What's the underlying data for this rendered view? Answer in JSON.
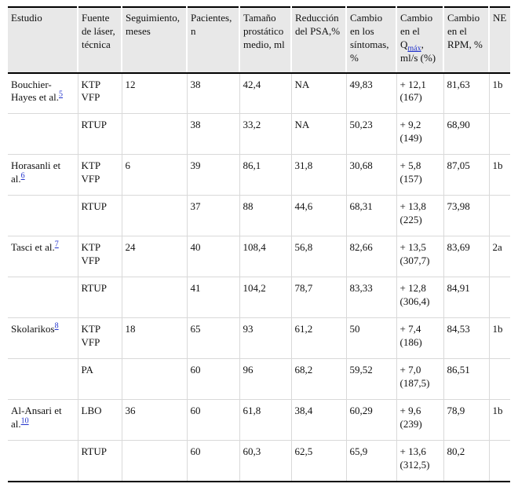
{
  "colors": {
    "page_bg": "#ffffff",
    "text": "#111111",
    "header_bg": "#e8e8e8",
    "link": "#2233cc",
    "border_dark": "#000000",
    "border_light": "#d9d9d9"
  },
  "table": {
    "columns": [
      {
        "key": "study",
        "label": "Estudio"
      },
      {
        "key": "technique",
        "label": "Fuente de láser, técnica"
      },
      {
        "key": "followup",
        "label": "Seguimiento, meses"
      },
      {
        "key": "patients",
        "label": "Pacientes, n"
      },
      {
        "key": "prostate_size",
        "label": "Tamaño prostático medio, ml"
      },
      {
        "key": "psa_reduction",
        "label": "Reducción del PSA,%"
      },
      {
        "key": "symptom_change",
        "label": "Cambio en los síntomas, %"
      },
      {
        "key": "qmax_change",
        "label": "Cambio en el Qmáx, ml/s (%)",
        "label_parts": {
          "prefix": "Cambio en el Q",
          "subscript": "máx",
          "suffix": ", ml/s (%)"
        }
      },
      {
        "key": "rpm_change",
        "label": "Cambio en el RPM, %"
      },
      {
        "key": "ne",
        "label": "NE"
      }
    ],
    "rows": [
      {
        "study": "Bouchier-Hayes et al.",
        "ref": "5",
        "technique": "KTP VFP",
        "followup": "12",
        "patients": "38",
        "prostate_size": "42,4",
        "psa_reduction": "NA",
        "symptom_change": "49,83",
        "qmax_change": "+ 12,1 (167)",
        "rpm_change": "81,63",
        "ne": "1b"
      },
      {
        "study": "",
        "ref": "",
        "technique": "RTUP",
        "followup": "",
        "patients": "38",
        "prostate_size": "33,2",
        "psa_reduction": "NA",
        "symptom_change": "50,23",
        "qmax_change": "+ 9,2 (149)",
        "rpm_change": "68,90",
        "ne": ""
      },
      {
        "study": "Horasanli et al.",
        "ref": "6",
        "technique": "KTP VFP",
        "followup": "6",
        "patients": "39",
        "prostate_size": "86,1",
        "psa_reduction": "31,8",
        "symptom_change": "30,68",
        "qmax_change": "+ 5,8 (157)",
        "rpm_change": "87,05",
        "ne": "1b"
      },
      {
        "study": "",
        "ref": "",
        "technique": "RTUP",
        "followup": "",
        "patients": "37",
        "prostate_size": "88",
        "psa_reduction": "44,6",
        "symptom_change": "68,31",
        "qmax_change": "+ 13,8 (225)",
        "rpm_change": "73,98",
        "ne": ""
      },
      {
        "study": "Tasci et al.",
        "ref": "7",
        "technique": "KTP VFP",
        "followup": "24",
        "patients": "40",
        "prostate_size": "108,4",
        "psa_reduction": "56,8",
        "symptom_change": "82,66",
        "qmax_change": "+ 13,5 (307,7)",
        "rpm_change": "83,69",
        "ne": "2a"
      },
      {
        "study": "",
        "ref": "",
        "technique": "RTUP",
        "followup": "",
        "patients": "41",
        "prostate_size": "104,2",
        "psa_reduction": "78,7",
        "symptom_change": "83,33",
        "qmax_change": "+ 12,8 (306,4)",
        "rpm_change": "84,91",
        "ne": ""
      },
      {
        "study": "Skolarikos",
        "ref": "8",
        "technique": "KTP VFP",
        "followup": "18",
        "patients": "65",
        "prostate_size": "93",
        "psa_reduction": "61,2",
        "symptom_change": "50",
        "qmax_change": "+ 7,4 (186)",
        "rpm_change": "84,53",
        "ne": "1b"
      },
      {
        "study": "",
        "ref": "",
        "technique": "PA",
        "followup": "",
        "patients": "60",
        "prostate_size": "96",
        "psa_reduction": "68,2",
        "symptom_change": "59,52",
        "qmax_change": "+ 7,0 (187,5)",
        "rpm_change": "86,51",
        "ne": ""
      },
      {
        "study": "Al-Ansari et al.",
        "ref": "10",
        "technique": "LBO",
        "followup": "36",
        "patients": "60",
        "prostate_size": "61,8",
        "psa_reduction": "38,4",
        "symptom_change": "60,29",
        "qmax_change": "+ 9,6 (239)",
        "rpm_change": "78,9",
        "ne": "1b"
      },
      {
        "study": "",
        "ref": "",
        "technique": "RTUP",
        "followup": "",
        "patients": "60",
        "prostate_size": "60,3",
        "psa_reduction": "62,5",
        "symptom_change": "65,9",
        "qmax_change": "+ 13,6 (312,5)",
        "rpm_change": "80,2",
        "ne": ""
      }
    ]
  }
}
